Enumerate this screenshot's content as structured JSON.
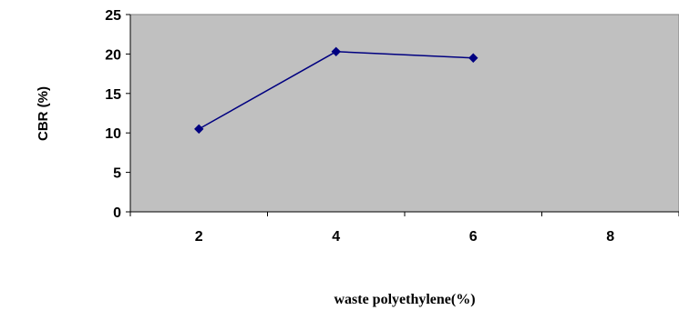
{
  "chart_data": {
    "type": "line",
    "categories": [
      "2",
      "4",
      "6",
      "8"
    ],
    "series": [
      {
        "values": [
          10.5,
          20.3,
          19.5,
          null
        ],
        "color": "#000080"
      }
    ],
    "ylabel": "CBR (%)",
    "xlabel": "waste polyethylene(%)",
    "ylim": [
      0,
      25
    ],
    "yticks": [
      "0",
      "5",
      "10",
      "15",
      "20",
      "25"
    ],
    "grid": false,
    "plot_background": "#c0c0c0",
    "marker": "diamond"
  }
}
